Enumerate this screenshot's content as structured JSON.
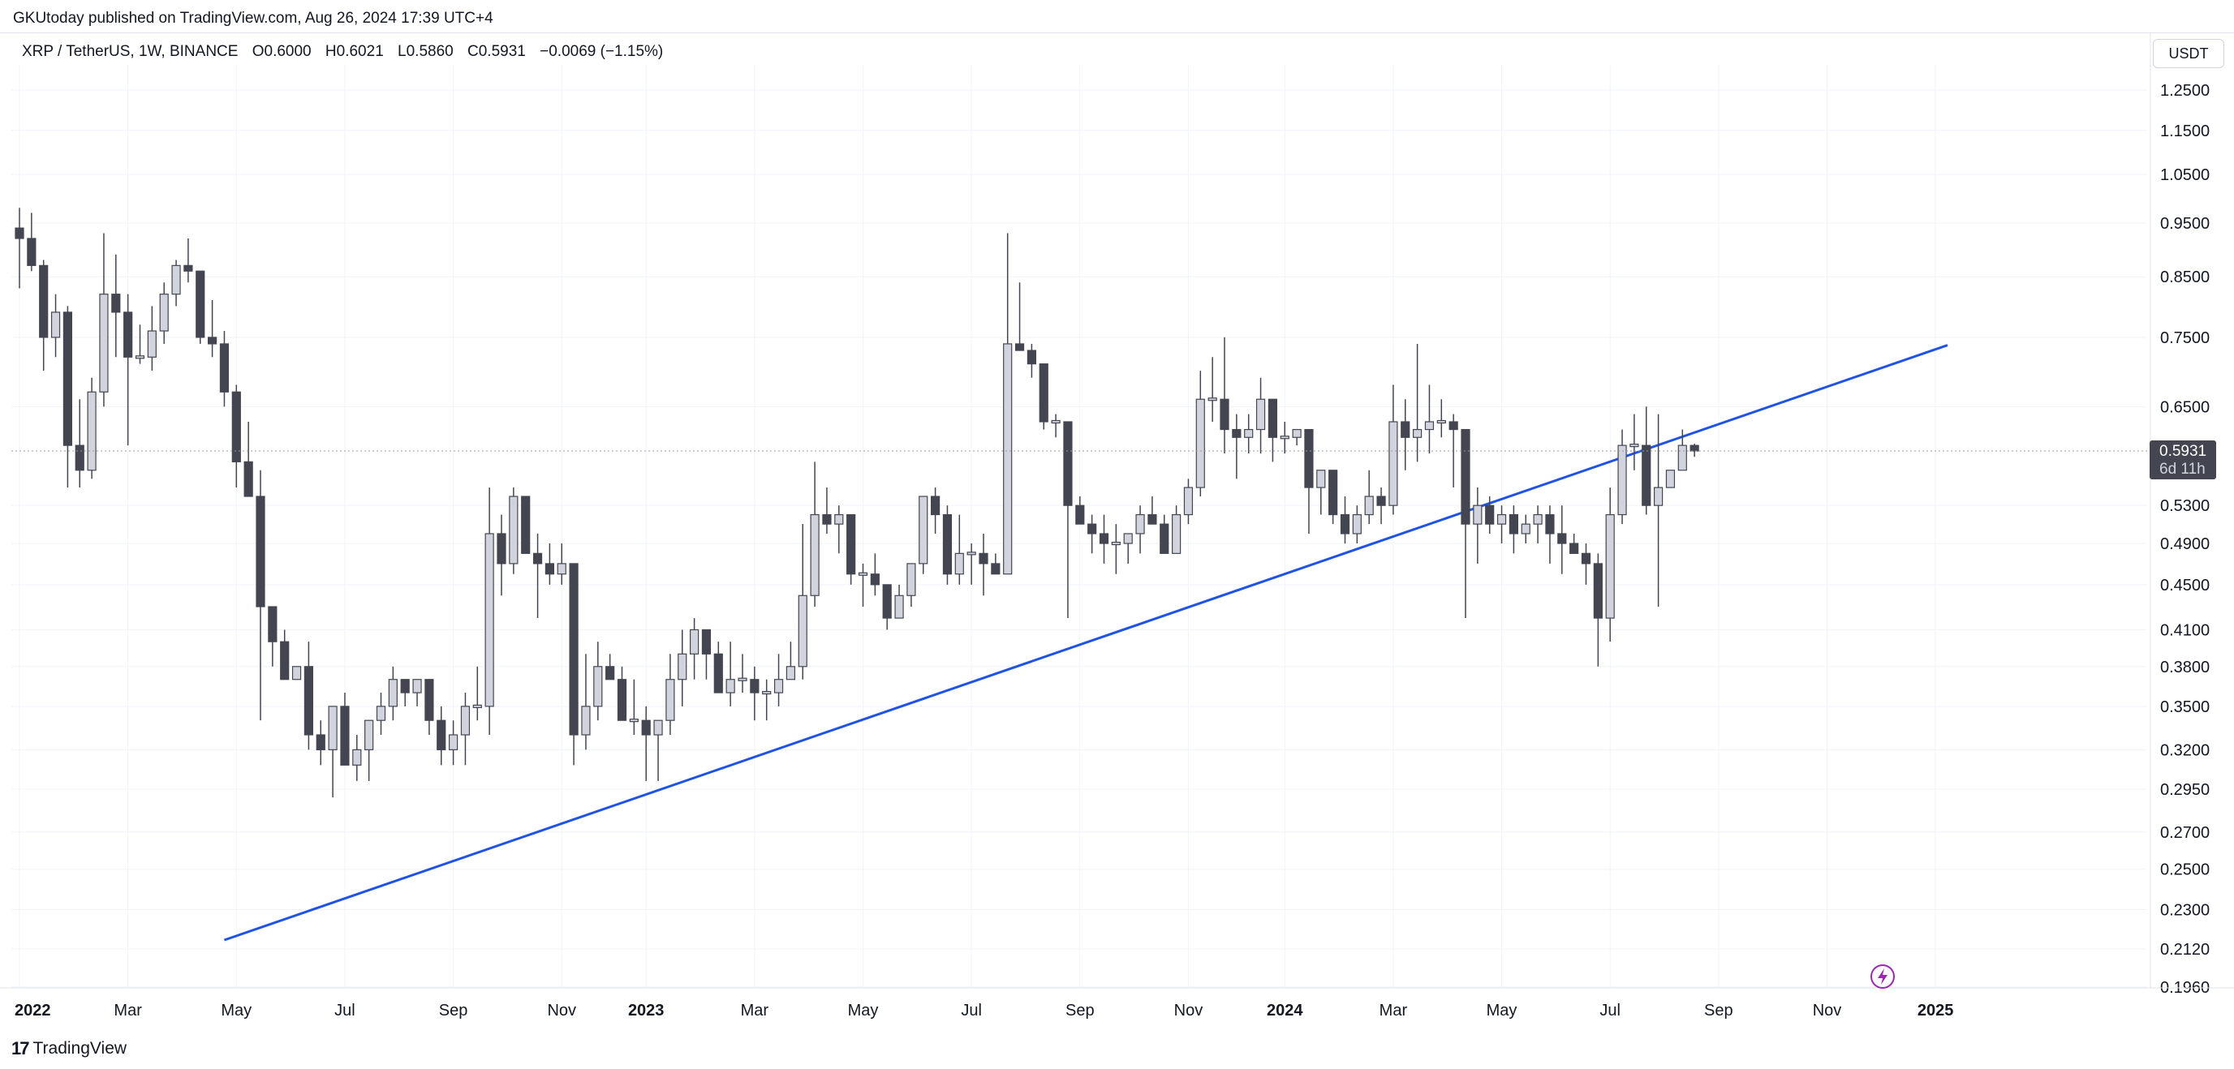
{
  "header": {
    "published": "GKUtoday published on TradingView.com, Aug 26, 2024 17:39 UTC+4",
    "symbol": "XRP / TetherUS, 1W, BINANCE",
    "open": "O0.6000",
    "high": "H0.6021",
    "low": "L0.5860",
    "close": "C0.5931",
    "change": "−0.0069 (−1.15%)",
    "currency_button": "USDT"
  },
  "footer": {
    "logo": "17",
    "brand": "TradingView"
  },
  "colors": {
    "up_fill": "#d1d4dc",
    "down_fill": "#434651",
    "trendline": "#1e53e5",
    "price_tag": "#434651",
    "grid": "#f0f3fa",
    "accent_icon": "#9c27b0"
  },
  "chart_data": {
    "type": "candlestick",
    "scale": "log",
    "ylim": [
      0.19,
      1.3
    ],
    "y_ticks": [
      "1.2500",
      "1.1500",
      "1.0500",
      "0.9500",
      "0.8500",
      "0.7500",
      "0.6500",
      "0.5300",
      "0.4900",
      "0.4500",
      "0.4100",
      "0.3800",
      "0.3500",
      "0.3200",
      "0.2950",
      "0.2700",
      "0.2500",
      "0.2300",
      "0.2120",
      "0.1960"
    ],
    "x_labels": [
      {
        "label": "2022",
        "bold": true,
        "index": 0
      },
      {
        "label": "Mar",
        "bold": false,
        "index": 9
      },
      {
        "label": "May",
        "bold": false,
        "index": 18
      },
      {
        "label": "Jul",
        "bold": false,
        "index": 27
      },
      {
        "label": "Sep",
        "bold": false,
        "index": 36
      },
      {
        "label": "Nov",
        "bold": false,
        "index": 45
      },
      {
        "label": "2023",
        "bold": true,
        "index": 52
      },
      {
        "label": "Mar",
        "bold": false,
        "index": 61
      },
      {
        "label": "May",
        "bold": false,
        "index": 70
      },
      {
        "label": "Jul",
        "bold": false,
        "index": 79
      },
      {
        "label": "Sep",
        "bold": false,
        "index": 88
      },
      {
        "label": "Nov",
        "bold": false,
        "index": 97
      },
      {
        "label": "2024",
        "bold": true,
        "index": 105
      },
      {
        "label": "Mar",
        "bold": false,
        "index": 114
      },
      {
        "label": "May",
        "bold": false,
        "index": 123
      },
      {
        "label": "Jul",
        "bold": false,
        "index": 132
      },
      {
        "label": "Sep",
        "bold": false,
        "index": 141
      },
      {
        "label": "Nov",
        "bold": false,
        "index": 150
      },
      {
        "label": "2025",
        "bold": true,
        "index": 159
      }
    ],
    "candles": [
      {
        "o": 0.94,
        "h": 0.98,
        "l": 0.83,
        "c": 0.92
      },
      {
        "o": 0.92,
        "h": 0.97,
        "l": 0.86,
        "c": 0.87
      },
      {
        "o": 0.87,
        "h": 0.88,
        "l": 0.7,
        "c": 0.75
      },
      {
        "o": 0.75,
        "h": 0.82,
        "l": 0.72,
        "c": 0.79
      },
      {
        "o": 0.79,
        "h": 0.8,
        "l": 0.55,
        "c": 0.6
      },
      {
        "o": 0.6,
        "h": 0.66,
        "l": 0.55,
        "c": 0.57
      },
      {
        "o": 0.57,
        "h": 0.69,
        "l": 0.56,
        "c": 0.67
      },
      {
        "o": 0.67,
        "h": 0.93,
        "l": 0.65,
        "c": 0.82
      },
      {
        "o": 0.82,
        "h": 0.89,
        "l": 0.72,
        "c": 0.79
      },
      {
        "o": 0.79,
        "h": 0.82,
        "l": 0.6,
        "c": 0.72
      },
      {
        "o": 0.72,
        "h": 0.77,
        "l": 0.71,
        "c": 0.72
      },
      {
        "o": 0.72,
        "h": 0.8,
        "l": 0.7,
        "c": 0.76
      },
      {
        "o": 0.76,
        "h": 0.84,
        "l": 0.74,
        "c": 0.82
      },
      {
        "o": 0.82,
        "h": 0.88,
        "l": 0.8,
        "c": 0.87
      },
      {
        "o": 0.87,
        "h": 0.92,
        "l": 0.84,
        "c": 0.86
      },
      {
        "o": 0.86,
        "h": 0.86,
        "l": 0.74,
        "c": 0.75
      },
      {
        "o": 0.75,
        "h": 0.81,
        "l": 0.72,
        "c": 0.74
      },
      {
        "o": 0.74,
        "h": 0.76,
        "l": 0.65,
        "c": 0.67
      },
      {
        "o": 0.67,
        "h": 0.68,
        "l": 0.55,
        "c": 0.58
      },
      {
        "o": 0.58,
        "h": 0.63,
        "l": 0.54,
        "c": 0.54
      },
      {
        "o": 0.54,
        "h": 0.57,
        "l": 0.34,
        "c": 0.43
      },
      {
        "o": 0.43,
        "h": 0.43,
        "l": 0.38,
        "c": 0.4
      },
      {
        "o": 0.4,
        "h": 0.41,
        "l": 0.37,
        "c": 0.37
      },
      {
        "o": 0.37,
        "h": 0.38,
        "l": 0.37,
        "c": 0.38
      },
      {
        "o": 0.38,
        "h": 0.4,
        "l": 0.32,
        "c": 0.33
      },
      {
        "o": 0.33,
        "h": 0.34,
        "l": 0.31,
        "c": 0.32
      },
      {
        "o": 0.32,
        "h": 0.35,
        "l": 0.29,
        "c": 0.35
      },
      {
        "o": 0.35,
        "h": 0.36,
        "l": 0.31,
        "c": 0.31
      },
      {
        "o": 0.31,
        "h": 0.33,
        "l": 0.3,
        "c": 0.32
      },
      {
        "o": 0.32,
        "h": 0.34,
        "l": 0.3,
        "c": 0.34
      },
      {
        "o": 0.34,
        "h": 0.36,
        "l": 0.33,
        "c": 0.35
      },
      {
        "o": 0.35,
        "h": 0.38,
        "l": 0.34,
        "c": 0.37
      },
      {
        "o": 0.37,
        "h": 0.37,
        "l": 0.35,
        "c": 0.36
      },
      {
        "o": 0.36,
        "h": 0.37,
        "l": 0.35,
        "c": 0.37
      },
      {
        "o": 0.37,
        "h": 0.37,
        "l": 0.33,
        "c": 0.34
      },
      {
        "o": 0.34,
        "h": 0.35,
        "l": 0.31,
        "c": 0.32
      },
      {
        "o": 0.32,
        "h": 0.34,
        "l": 0.31,
        "c": 0.33
      },
      {
        "o": 0.33,
        "h": 0.36,
        "l": 0.31,
        "c": 0.35
      },
      {
        "o": 0.35,
        "h": 0.38,
        "l": 0.34,
        "c": 0.35
      },
      {
        "o": 0.35,
        "h": 0.55,
        "l": 0.33,
        "c": 0.5
      },
      {
        "o": 0.5,
        "h": 0.52,
        "l": 0.44,
        "c": 0.47
      },
      {
        "o": 0.47,
        "h": 0.55,
        "l": 0.46,
        "c": 0.54
      },
      {
        "o": 0.54,
        "h": 0.54,
        "l": 0.48,
        "c": 0.48
      },
      {
        "o": 0.48,
        "h": 0.5,
        "l": 0.42,
        "c": 0.47
      },
      {
        "o": 0.47,
        "h": 0.49,
        "l": 0.45,
        "c": 0.46
      },
      {
        "o": 0.46,
        "h": 0.49,
        "l": 0.45,
        "c": 0.47
      },
      {
        "o": 0.47,
        "h": 0.47,
        "l": 0.31,
        "c": 0.33
      },
      {
        "o": 0.33,
        "h": 0.39,
        "l": 0.32,
        "c": 0.35
      },
      {
        "o": 0.35,
        "h": 0.4,
        "l": 0.34,
        "c": 0.38
      },
      {
        "o": 0.38,
        "h": 0.39,
        "l": 0.37,
        "c": 0.37
      },
      {
        "o": 0.37,
        "h": 0.38,
        "l": 0.34,
        "c": 0.34
      },
      {
        "o": 0.34,
        "h": 0.37,
        "l": 0.33,
        "c": 0.34
      },
      {
        "o": 0.34,
        "h": 0.35,
        "l": 0.3,
        "c": 0.33
      },
      {
        "o": 0.33,
        "h": 0.34,
        "l": 0.3,
        "c": 0.34
      },
      {
        "o": 0.34,
        "h": 0.39,
        "l": 0.33,
        "c": 0.37
      },
      {
        "o": 0.37,
        "h": 0.41,
        "l": 0.35,
        "c": 0.39
      },
      {
        "o": 0.39,
        "h": 0.42,
        "l": 0.37,
        "c": 0.41
      },
      {
        "o": 0.41,
        "h": 0.41,
        "l": 0.37,
        "c": 0.39
      },
      {
        "o": 0.39,
        "h": 0.4,
        "l": 0.36,
        "c": 0.36
      },
      {
        "o": 0.36,
        "h": 0.4,
        "l": 0.35,
        "c": 0.37
      },
      {
        "o": 0.37,
        "h": 0.39,
        "l": 0.36,
        "c": 0.37
      },
      {
        "o": 0.37,
        "h": 0.38,
        "l": 0.34,
        "c": 0.36
      },
      {
        "o": 0.36,
        "h": 0.37,
        "l": 0.34,
        "c": 0.36
      },
      {
        "o": 0.36,
        "h": 0.39,
        "l": 0.35,
        "c": 0.37
      },
      {
        "o": 0.37,
        "h": 0.4,
        "l": 0.37,
        "c": 0.38
      },
      {
        "o": 0.38,
        "h": 0.51,
        "l": 0.37,
        "c": 0.44
      },
      {
        "o": 0.44,
        "h": 0.58,
        "l": 0.43,
        "c": 0.52
      },
      {
        "o": 0.52,
        "h": 0.55,
        "l": 0.5,
        "c": 0.51
      },
      {
        "o": 0.51,
        "h": 0.53,
        "l": 0.48,
        "c": 0.52
      },
      {
        "o": 0.52,
        "h": 0.52,
        "l": 0.45,
        "c": 0.46
      },
      {
        "o": 0.46,
        "h": 0.47,
        "l": 0.43,
        "c": 0.46
      },
      {
        "o": 0.46,
        "h": 0.48,
        "l": 0.44,
        "c": 0.45
      },
      {
        "o": 0.45,
        "h": 0.45,
        "l": 0.41,
        "c": 0.42
      },
      {
        "o": 0.42,
        "h": 0.45,
        "l": 0.42,
        "c": 0.44
      },
      {
        "o": 0.44,
        "h": 0.47,
        "l": 0.43,
        "c": 0.47
      },
      {
        "o": 0.47,
        "h": 0.54,
        "l": 0.46,
        "c": 0.54
      },
      {
        "o": 0.54,
        "h": 0.55,
        "l": 0.5,
        "c": 0.52
      },
      {
        "o": 0.52,
        "h": 0.53,
        "l": 0.45,
        "c": 0.46
      },
      {
        "o": 0.46,
        "h": 0.52,
        "l": 0.45,
        "c": 0.48
      },
      {
        "o": 0.48,
        "h": 0.49,
        "l": 0.45,
        "c": 0.48
      },
      {
        "o": 0.48,
        "h": 0.5,
        "l": 0.44,
        "c": 0.47
      },
      {
        "o": 0.47,
        "h": 0.48,
        "l": 0.46,
        "c": 0.46
      },
      {
        "o": 0.46,
        "h": 0.93,
        "l": 0.46,
        "c": 0.74
      },
      {
        "o": 0.74,
        "h": 0.84,
        "l": 0.73,
        "c": 0.73
      },
      {
        "o": 0.73,
        "h": 0.74,
        "l": 0.69,
        "c": 0.71
      },
      {
        "o": 0.71,
        "h": 0.71,
        "l": 0.62,
        "c": 0.63
      },
      {
        "o": 0.63,
        "h": 0.64,
        "l": 0.61,
        "c": 0.63
      },
      {
        "o": 0.63,
        "h": 0.63,
        "l": 0.42,
        "c": 0.53
      },
      {
        "o": 0.53,
        "h": 0.54,
        "l": 0.51,
        "c": 0.51
      },
      {
        "o": 0.51,
        "h": 0.52,
        "l": 0.48,
        "c": 0.5
      },
      {
        "o": 0.5,
        "h": 0.52,
        "l": 0.47,
        "c": 0.49
      },
      {
        "o": 0.49,
        "h": 0.51,
        "l": 0.46,
        "c": 0.49
      },
      {
        "o": 0.49,
        "h": 0.5,
        "l": 0.47,
        "c": 0.5
      },
      {
        "o": 0.5,
        "h": 0.53,
        "l": 0.48,
        "c": 0.52
      },
      {
        "o": 0.52,
        "h": 0.54,
        "l": 0.51,
        "c": 0.51
      },
      {
        "o": 0.51,
        "h": 0.52,
        "l": 0.48,
        "c": 0.48
      },
      {
        "o": 0.48,
        "h": 0.53,
        "l": 0.48,
        "c": 0.52
      },
      {
        "o": 0.52,
        "h": 0.56,
        "l": 0.51,
        "c": 0.55
      },
      {
        "o": 0.55,
        "h": 0.7,
        "l": 0.54,
        "c": 0.66
      },
      {
        "o": 0.66,
        "h": 0.72,
        "l": 0.63,
        "c": 0.66
      },
      {
        "o": 0.66,
        "h": 0.75,
        "l": 0.59,
        "c": 0.62
      },
      {
        "o": 0.62,
        "h": 0.64,
        "l": 0.56,
        "c": 0.61
      },
      {
        "o": 0.61,
        "h": 0.64,
        "l": 0.59,
        "c": 0.62
      },
      {
        "o": 0.62,
        "h": 0.69,
        "l": 0.59,
        "c": 0.66
      },
      {
        "o": 0.66,
        "h": 0.66,
        "l": 0.58,
        "c": 0.61
      },
      {
        "o": 0.61,
        "h": 0.63,
        "l": 0.59,
        "c": 0.61
      },
      {
        "o": 0.61,
        "h": 0.62,
        "l": 0.6,
        "c": 0.62
      },
      {
        "o": 0.62,
        "h": 0.62,
        "l": 0.5,
        "c": 0.55
      },
      {
        "o": 0.55,
        "h": 0.57,
        "l": 0.52,
        "c": 0.57
      },
      {
        "o": 0.57,
        "h": 0.57,
        "l": 0.51,
        "c": 0.52
      },
      {
        "o": 0.52,
        "h": 0.54,
        "l": 0.49,
        "c": 0.5
      },
      {
        "o": 0.5,
        "h": 0.53,
        "l": 0.49,
        "c": 0.52
      },
      {
        "o": 0.52,
        "h": 0.57,
        "l": 0.51,
        "c": 0.54
      },
      {
        "o": 0.54,
        "h": 0.55,
        "l": 0.51,
        "c": 0.53
      },
      {
        "o": 0.53,
        "h": 0.68,
        "l": 0.52,
        "c": 0.63
      },
      {
        "o": 0.63,
        "h": 0.66,
        "l": 0.57,
        "c": 0.61
      },
      {
        "o": 0.61,
        "h": 0.74,
        "l": 0.58,
        "c": 0.62
      },
      {
        "o": 0.62,
        "h": 0.68,
        "l": 0.59,
        "c": 0.63
      },
      {
        "o": 0.63,
        "h": 0.66,
        "l": 0.61,
        "c": 0.63
      },
      {
        "o": 0.63,
        "h": 0.64,
        "l": 0.55,
        "c": 0.62
      },
      {
        "o": 0.62,
        "h": 0.62,
        "l": 0.42,
        "c": 0.51
      },
      {
        "o": 0.51,
        "h": 0.55,
        "l": 0.47,
        "c": 0.53
      },
      {
        "o": 0.53,
        "h": 0.54,
        "l": 0.5,
        "c": 0.51
      },
      {
        "o": 0.51,
        "h": 0.53,
        "l": 0.49,
        "c": 0.52
      },
      {
        "o": 0.52,
        "h": 0.53,
        "l": 0.48,
        "c": 0.5
      },
      {
        "o": 0.5,
        "h": 0.52,
        "l": 0.49,
        "c": 0.51
      },
      {
        "o": 0.51,
        "h": 0.53,
        "l": 0.49,
        "c": 0.52
      },
      {
        "o": 0.52,
        "h": 0.53,
        "l": 0.47,
        "c": 0.5
      },
      {
        "o": 0.5,
        "h": 0.53,
        "l": 0.46,
        "c": 0.49
      },
      {
        "o": 0.49,
        "h": 0.5,
        "l": 0.48,
        "c": 0.48
      },
      {
        "o": 0.48,
        "h": 0.49,
        "l": 0.45,
        "c": 0.47
      },
      {
        "o": 0.47,
        "h": 0.48,
        "l": 0.38,
        "c": 0.42
      },
      {
        "o": 0.42,
        "h": 0.55,
        "l": 0.4,
        "c": 0.52
      },
      {
        "o": 0.52,
        "h": 0.62,
        "l": 0.51,
        "c": 0.6
      },
      {
        "o": 0.6,
        "h": 0.64,
        "l": 0.57,
        "c": 0.6
      },
      {
        "o": 0.6,
        "h": 0.65,
        "l": 0.52,
        "c": 0.53
      },
      {
        "o": 0.53,
        "h": 0.64,
        "l": 0.43,
        "c": 0.55
      },
      {
        "o": 0.55,
        "h": 0.57,
        "l": 0.55,
        "c": 0.57
      },
      {
        "o": 0.57,
        "h": 0.62,
        "l": 0.57,
        "c": 0.6
      },
      {
        "o": 0.6,
        "h": 0.6021,
        "l": 0.586,
        "c": 0.5931
      }
    ],
    "trendline": [
      {
        "index": 17,
        "price": 0.216
      },
      {
        "index": 160,
        "price": 0.738
      }
    ],
    "last_price": {
      "label": "0.5931",
      "countdown": "6d 11h",
      "value": 0.5931
    }
  }
}
